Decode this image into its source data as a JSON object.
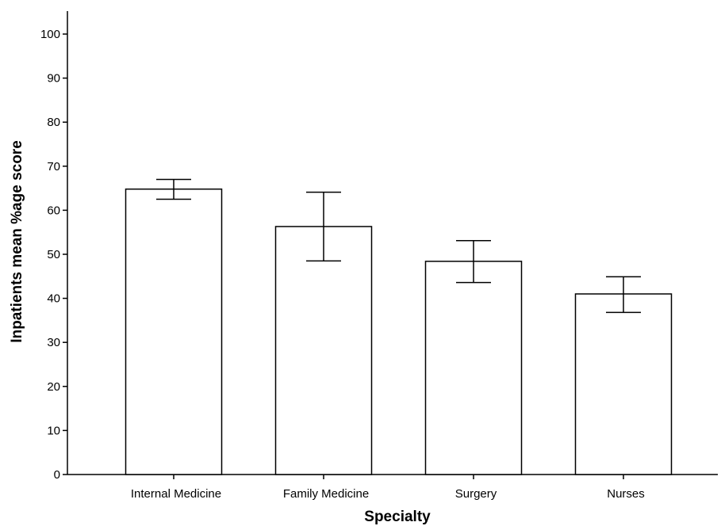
{
  "chart_data": {
    "type": "bar",
    "title": "",
    "xlabel": "Specialty",
    "ylabel": "Inpatients mean %age score",
    "ylim": [
      0,
      100
    ],
    "yticks": [
      0,
      10,
      20,
      30,
      40,
      50,
      60,
      70,
      80,
      90,
      100
    ],
    "grid": false,
    "categories": [
      "Internal Medicine",
      "Family Medicine",
      "Surgery",
      "Nurses"
    ],
    "values": [
      64.8,
      56.3,
      48.4,
      41.0
    ],
    "error_low": [
      62.5,
      48.5,
      43.6,
      36.8
    ],
    "error_high": [
      67.0,
      64.1,
      53.1,
      44.9
    ],
    "colors": {
      "bar_fill": "#ffffff",
      "stroke": "#000000"
    }
  }
}
